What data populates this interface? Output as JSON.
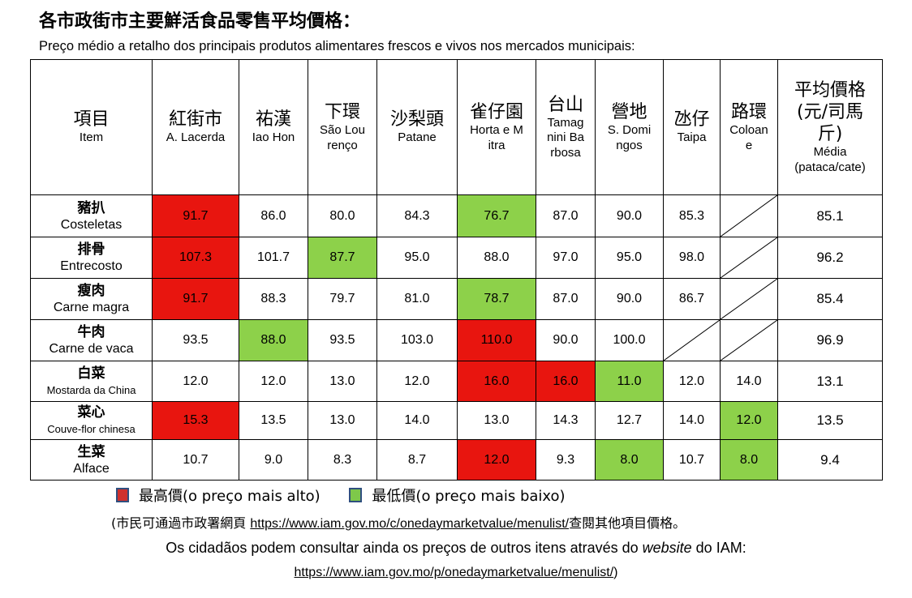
{
  "title_zh": "各市政街市主要鮮活食品零售平均價格：",
  "title_pt": "Preço médio a retalho dos principais produtos alimentares frescos e vivos nos mercados municipais:",
  "header": {
    "item": {
      "zh": "項目",
      "pt": "Item"
    },
    "markets": [
      {
        "zh": "紅街市",
        "pt": "A. Lacerda"
      },
      {
        "zh": "祐漢",
        "pt": "Iao Hon"
      },
      {
        "zh": "下環",
        "pt": "São Lourenço"
      },
      {
        "zh": "沙梨頭",
        "pt": "Patane"
      },
      {
        "zh": "雀仔園",
        "pt": "Horta e Mitra"
      },
      {
        "zh": "台山",
        "pt": "Tamagnini Barbosa"
      },
      {
        "zh": "營地",
        "pt": "S. Domingos"
      },
      {
        "zh": "氹仔",
        "pt": "Taipa"
      },
      {
        "zh": "路環",
        "pt": "Coloane"
      }
    ],
    "average": {
      "zh": "平均價格(元/司馬斤)",
      "pt": "Média (pataca/cate)"
    }
  },
  "rows": [
    {
      "zh": "豬扒",
      "pt": "Costeletas",
      "values": [
        "91.7",
        "86.0",
        "80.0",
        "84.3",
        "76.7",
        "87.0",
        "90.0",
        "85.3",
        ""
      ],
      "avg": "85.1"
    },
    {
      "zh": "排骨",
      "pt": "Entrecosto",
      "values": [
        "107.3",
        "101.7",
        "87.7",
        "95.0",
        "88.0",
        "97.0",
        "95.0",
        "98.0",
        ""
      ],
      "avg": "96.2"
    },
    {
      "zh": "瘦肉",
      "pt": "Carne magra",
      "values": [
        "91.7",
        "88.3",
        "79.7",
        "81.0",
        "78.7",
        "87.0",
        "90.0",
        "86.7",
        ""
      ],
      "avg": "85.4"
    },
    {
      "zh": "牛肉",
      "pt": "Carne de vaca",
      "values": [
        "93.5",
        "88.0",
        "93.5",
        "103.0",
        "110.0",
        "90.0",
        "100.0",
        "",
        ""
      ],
      "avg": "96.9"
    },
    {
      "zh": "白菜",
      "pt": "Mostarda da China",
      "values": [
        "12.0",
        "12.0",
        "13.0",
        "12.0",
        "16.0",
        "16.0",
        "11.0",
        "12.0",
        "14.0"
      ],
      "avg": "13.1"
    },
    {
      "zh": "菜心",
      "pt": "Couve-flor chinesa",
      "values": [
        "15.3",
        "13.5",
        "13.0",
        "14.0",
        "13.0",
        "14.3",
        "12.7",
        "14.0",
        "12.0"
      ],
      "avg": "13.5"
    },
    {
      "zh": "生菜",
      "pt": "Alface",
      "values": [
        "10.7",
        "9.0",
        "8.3",
        "8.7",
        "12.0",
        "9.3",
        "8.0",
        "10.7",
        "8.0"
      ],
      "avg": "9.4"
    }
  ],
  "highlights": {
    "high_color": "#e8150f",
    "low_color": "#8dd14a",
    "high": [
      [
        0,
        0
      ],
      [
        1,
        0
      ],
      [
        2,
        0
      ],
      [
        3,
        4
      ],
      [
        4,
        4
      ],
      [
        4,
        5
      ],
      [
        5,
        0
      ],
      [
        6,
        4
      ]
    ],
    "low": [
      [
        0,
        4
      ],
      [
        1,
        2
      ],
      [
        2,
        4
      ],
      [
        3,
        1
      ],
      [
        4,
        6
      ],
      [
        5,
        8
      ],
      [
        6,
        6
      ],
      [
        6,
        8
      ]
    ]
  },
  "legend": {
    "high_label": "最高價(o preço mais alto)",
    "low_label": "最低價(o preço mais baixo)"
  },
  "note_zh": {
    "before": "(市民可通過市政署網頁 ",
    "link": "https://www.iam.gov.mo/c/onedaymarketvalue/menulist/",
    "after": "查閱其他項目價格。"
  },
  "note_pt": {
    "before": "Os cidadãos podem consultar ainda os preços de outros itens através do ",
    "website": "website",
    "after": " do IAM:"
  },
  "note_pt_link": "https://www.iam.gov.mo/p/onedaymarketvalue/menulist/",
  "note_pt_close": ")"
}
